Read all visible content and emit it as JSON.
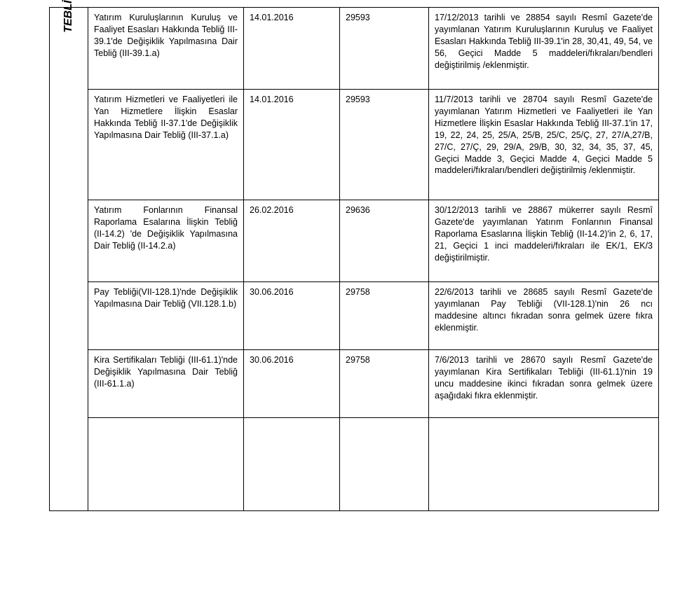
{
  "sideLabel": "TEBLİĞ",
  "rows": [
    {
      "colA": "Yatırım Kuruluşlarının Kuruluş ve Faaliyet Esasları Hakkında Tebliğ III-39.1'de Değişiklik Yapılmasına Dair Tebliğ (III-39.1.a)",
      "colB": "14.01.2016",
      "colC": "29593",
      "colD": "17/12/2013 tarihli ve 28854 sayılı Resmî Gazete'de yayımlanan Yatırım Kuruluşlarının Kuruluş ve Faaliyet Esasları Hakkında Tebliğ III-39.1'in 28, 30,41, 49, 54, ve 56, Geçici Madde 5 maddeleri/fıkraları/bendleri değiştirilmiş /eklenmiştir."
    },
    {
      "colA": "Yatırım Hizmetleri ve Faaliyetleri ile Yan Hizmetlere İlişkin Esaslar Hakkında Tebliğ II-37.1'de Değişiklik Yapılmasına Dair Tebliğ (III-37.1.a)",
      "colB": "14.01.2016",
      "colC": "29593",
      "colD": "11/7/2013 tarihli ve 28704 sayılı Resmî Gazete'de yayımlanan Yatırım Hizmetleri ve Faaliyetleri ile Yan Hizmetlere İlişkin Esaslar Hakkında Tebliğ III-37.1'in 17, 19, 22, 24, 25, 25/A, 25/B, 25/C, 25/Ç, 27, 27/A,27/B, 27/C, 27/Ç, 29, 29/A, 29/B, 30, 32, 34, 35, 37, 45, Geçici Madde 3, Geçici Madde 4, Geçici Madde 5 maddeleri/fıkraları/bendleri değiştirilmiş /eklenmiştir."
    },
    {
      "colA": "Yatırım Fonlarının Finansal Raporlama Esalarına İlişkin Tebliğ (II-14.2) 'de Değişiklik Yapılmasına Dair Tebliğ (II-14.2.a)",
      "colB": "26.02.2016",
      "colC": "29636",
      "colD": "30/12/2013 tarihli ve 28867 mükerrer sayılı Resmî Gazete'de yayımlanan Yatırım Fonlarının Finansal Raporlama Esaslarına İlişkin Tebliğ (II-14.2)'in 2, 6, 17, 21, Geçici 1 inci maddeleri/fıkraları ile EK/1, EK/3 değiştirilmiştir."
    },
    {
      "colA": "Pay Tebliği(VII-128.1)'nde Değişiklik Yapılmasına Dair Tebliğ (VII.128.1.b)",
      "colB": "30.06.2016",
      "colC": "29758",
      "colD": "22/6/2013 tarihli ve 28685 sayılı Resmî Gazete'de yayımlanan Pay Tebliği (VII-128.1)'nin 26 ncı maddesine altıncı fıkradan sonra gelmek üzere fıkra eklenmiştir."
    },
    {
      "colA": "Kira Sertifikaları Tebliği (III-61.1)'nde Değişiklik Yapılmasına Dair Tebliğ (III-61.1.a)",
      "colB": "30.06.2016",
      "colC": "29758",
      "colD": "7/6/2013 tarihli ve 28670 sayılı Resmî Gazete'de yayımlanan Kira Sertifikaları Tebliği (III-61.1)'nin 19 uncu maddesine ikinci fıkradan sonra gelmek üzere aşağıdaki fıkra eklenmiştir."
    }
  ]
}
